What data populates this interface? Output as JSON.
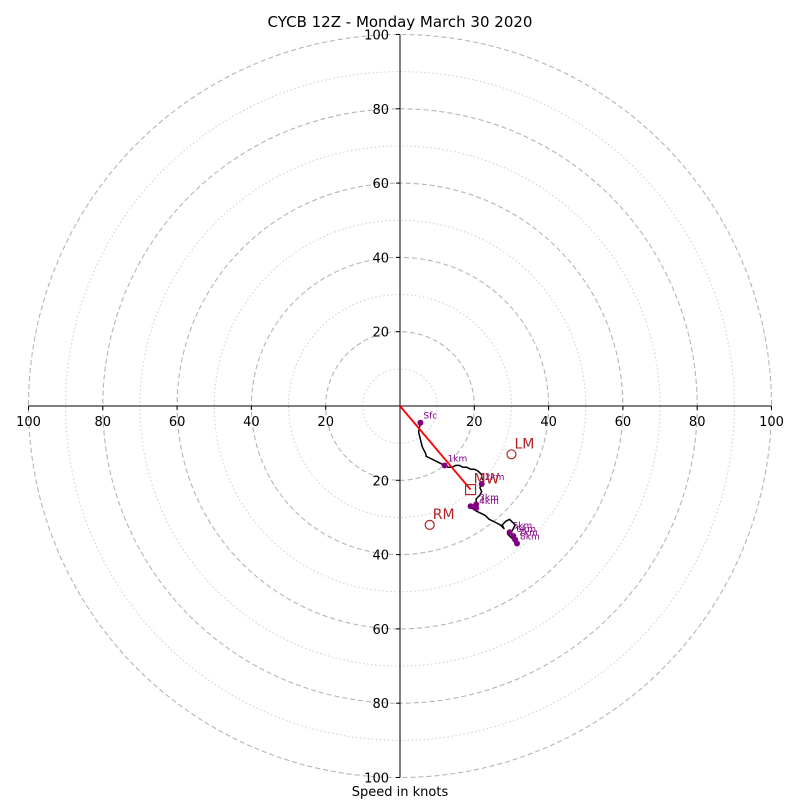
{
  "chart_data": {
    "type": "scatter",
    "subtype": "hodograph",
    "title": "CYCB 12Z - Monday March 30 2020",
    "xlabel": "Speed in knots",
    "ylabel": "",
    "xlim": [
      -100,
      100
    ],
    "ylim": [
      -100,
      100
    ],
    "rings_major": [
      20,
      40,
      60,
      80,
      100
    ],
    "rings_minor": [
      10,
      30,
      50,
      70,
      90
    ],
    "tick_labels": [
      "100",
      "80",
      "60",
      "40",
      "20",
      "20",
      "40",
      "60",
      "80",
      "100"
    ],
    "grid": true,
    "colors": {
      "ring": "#b5b5b5",
      "axis": "#000000",
      "trace": "#000000",
      "height_marker": "#800080",
      "storm_motion": "#b22222",
      "mean_wind_line": "#ff0000"
    },
    "hodograph_trace": {
      "x": [
        5.5,
        5,
        5.5,
        6,
        7,
        7,
        8,
        10,
        11,
        12,
        13,
        14,
        15,
        16,
        17,
        18,
        19,
        20,
        21,
        22,
        22,
        22.5,
        22,
        21.5,
        22,
        21.5,
        21,
        20.5,
        20.5,
        20,
        19.5,
        19.5,
        20,
        21,
        22,
        23,
        24,
        26,
        27,
        28,
        27.5,
        28.5,
        29.5,
        30,
        31,
        30.5,
        30,
        29,
        29.5,
        30,
        31
      ],
      "y": [
        -4.5,
        -7,
        -9,
        -11,
        -13,
        -13.5,
        -14,
        -15,
        -15.5,
        -16,
        -16.5,
        -16.5,
        -16,
        -16,
        -16.5,
        -16.5,
        -17,
        -17,
        -17.5,
        -18.5,
        -19.5,
        -20,
        -21,
        -22,
        -23,
        -24,
        -24.5,
        -25,
        -26,
        -26.5,
        -27,
        -27.5,
        -28,
        -28.5,
        -29,
        -29.5,
        -30.5,
        -31.5,
        -32,
        -33,
        -32,
        -31,
        -30.5,
        -31,
        -32,
        -33,
        -34,
        -34.5,
        -35,
        -35.5,
        -36.5
      ]
    },
    "height_markers": [
      {
        "label": "Sfc",
        "x": 5.5,
        "y": -4.5
      },
      {
        "label": "1km",
        "x": 12,
        "y": -16
      },
      {
        "label": "2km",
        "x": 22,
        "y": -21
      },
      {
        "label": "3km",
        "x": 20.5,
        "y": -26.5
      },
      {
        "label": "",
        "x": 19,
        "y": -27
      },
      {
        "label": "4km",
        "x": 20.5,
        "y": -27.5
      },
      {
        "label": "5km",
        "x": 29.5,
        "y": -34
      },
      {
        "label": "6km",
        "x": 30.5,
        "y": -35
      },
      {
        "label": "7km",
        "x": 31,
        "y": -36
      },
      {
        "label": "8km",
        "x": 31.5,
        "y": -37
      }
    ],
    "storm_motion": [
      {
        "label": "LM",
        "x": 30,
        "y": -13,
        "marker": "circle"
      },
      {
        "label": "RM",
        "x": 8,
        "y": -32,
        "marker": "circle"
      },
      {
        "label": "MW",
        "x": 19,
        "y": -22.5,
        "marker": "square"
      }
    ],
    "mean_wind_line": {
      "x": [
        0,
        19
      ],
      "y": [
        0,
        -22.5
      ]
    }
  }
}
